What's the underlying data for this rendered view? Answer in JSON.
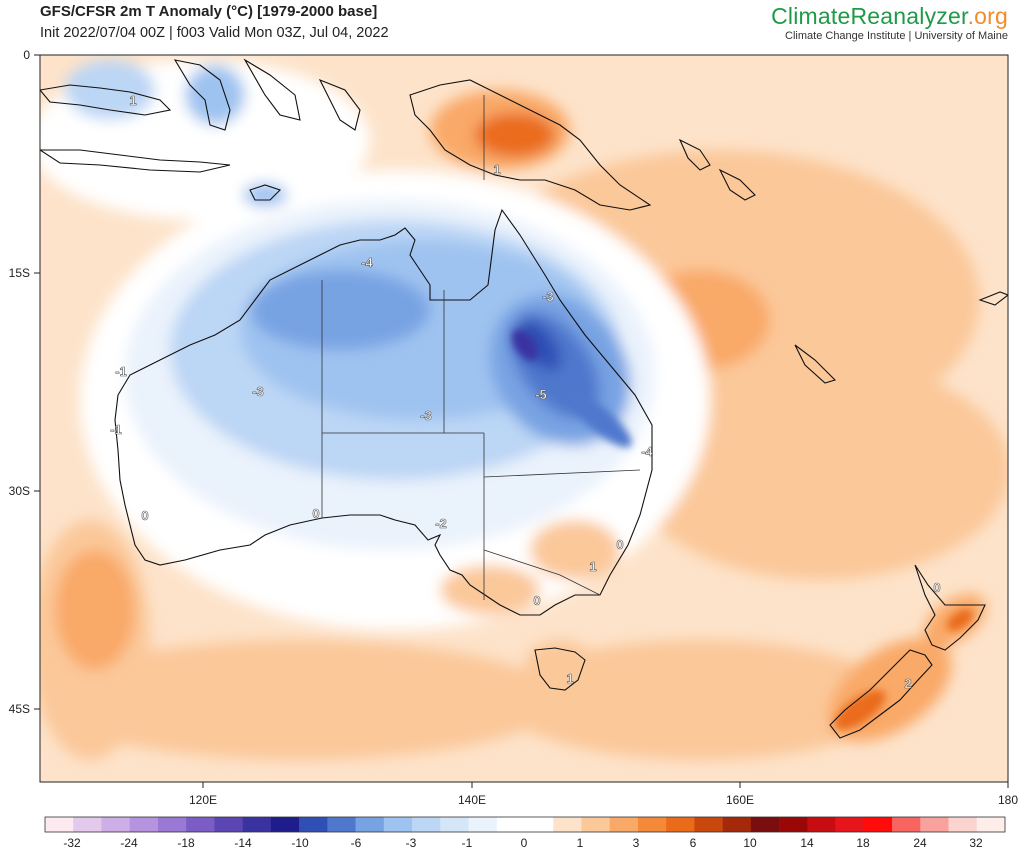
{
  "header": {
    "title": "GFS/CFSR 2m T Anomaly (°C) [1979-2000 base]",
    "subtitle": "Init 2022/07/04 00Z | f003 Valid Mon 03Z, Jul 04, 2022"
  },
  "brand": {
    "name_main": "ClimateReanalyzer",
    "name_suffix": ".org",
    "tagline": "Climate Change Institute | University of Maine"
  },
  "axes": {
    "y_labels": [
      "0",
      "15S",
      "30S",
      "45S"
    ],
    "x_labels": [
      "120E",
      "140E",
      "160E",
      "180"
    ]
  },
  "contour_labels": [
    "1",
    "1",
    "-4",
    "-3",
    "-1",
    "-3",
    "-3",
    "-5",
    "-4",
    "-1",
    "0",
    "0",
    "-2",
    "0",
    "1",
    "0",
    "1",
    "0",
    "2"
  ],
  "colorbar": {
    "labels": [
      "-32",
      "-24",
      "-18",
      "-14",
      "-10",
      "-6",
      "-3",
      "-1",
      "0",
      "1",
      "3",
      "6",
      "10",
      "14",
      "18",
      "24",
      "32"
    ],
    "colors": [
      "#fde9f0",
      "#e3c9ec",
      "#cdaee6",
      "#b593df",
      "#9a79d4",
      "#7c5dc6",
      "#5c46b4",
      "#3a32a0",
      "#1f1d8c",
      "#2f4fb5",
      "#4f78cd",
      "#78a3e3",
      "#9fc3f0",
      "#bcd6f5",
      "#d6e6f9",
      "#eaf2fc",
      "#ffffff",
      "#ffffff",
      "#fde3ca",
      "#fbc89a",
      "#f9a967",
      "#f5893a",
      "#ea6c1a",
      "#c9480d",
      "#a4290a",
      "#7a0d0d",
      "#9a0707",
      "#c70c12",
      "#e8141b",
      "#ff0b0b",
      "#f86460",
      "#f9a19c",
      "#fbd3cf",
      "#fdeeea"
    ]
  }
}
